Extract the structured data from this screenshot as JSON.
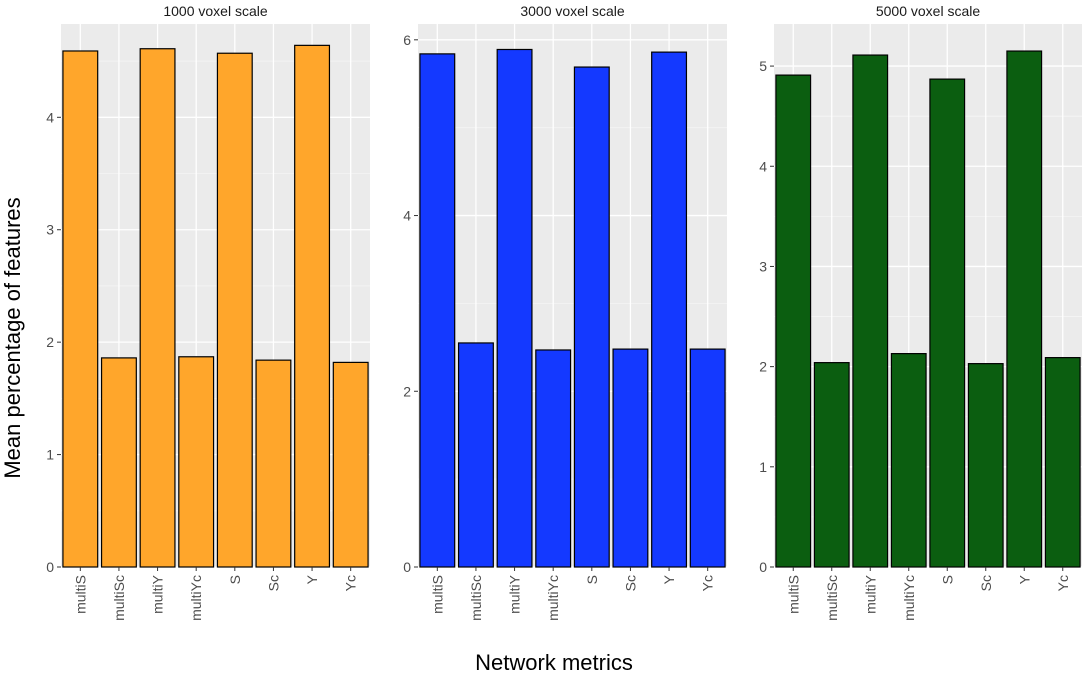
{
  "figure": {
    "ylabel": "Mean percentage of features",
    "xlabel": "Network metrics"
  },
  "chart_data": [
    {
      "type": "bar",
      "title": "1000 voxel scale",
      "categories": [
        "multiS",
        "multiSc",
        "multiY",
        "multiYc",
        "S",
        "Sc",
        "Y",
        "Yc"
      ],
      "values": [
        4.59,
        1.86,
        4.61,
        1.87,
        4.57,
        1.84,
        4.64,
        1.82
      ],
      "ylim": [
        0,
        4.83
      ],
      "yticks": [
        0,
        1,
        2,
        3,
        4
      ],
      "color": "#FFA62B",
      "grid": true
    },
    {
      "type": "bar",
      "title": "3000 voxel scale",
      "categories": [
        "multiS",
        "multiSc",
        "multiY",
        "multiYc",
        "S",
        "Sc",
        "Y",
        "Yc"
      ],
      "values": [
        5.84,
        2.55,
        5.89,
        2.47,
        5.69,
        2.48,
        5.86,
        2.48
      ],
      "ylim": [
        0,
        6.18
      ],
      "yticks": [
        0,
        2,
        4,
        6
      ],
      "color": "#1439FF",
      "grid": true
    },
    {
      "type": "bar",
      "title": "5000 voxel scale",
      "categories": [
        "multiS",
        "multiSc",
        "multiY",
        "multiYc",
        "S",
        "Sc",
        "Y",
        "Yc"
      ],
      "values": [
        4.91,
        2.04,
        5.11,
        2.13,
        4.87,
        2.03,
        5.15,
        2.09
      ],
      "ylim": [
        0,
        5.42
      ],
      "yticks": [
        0,
        1,
        2,
        3,
        4,
        5
      ],
      "color": "#0B5E10",
      "grid": true
    }
  ]
}
